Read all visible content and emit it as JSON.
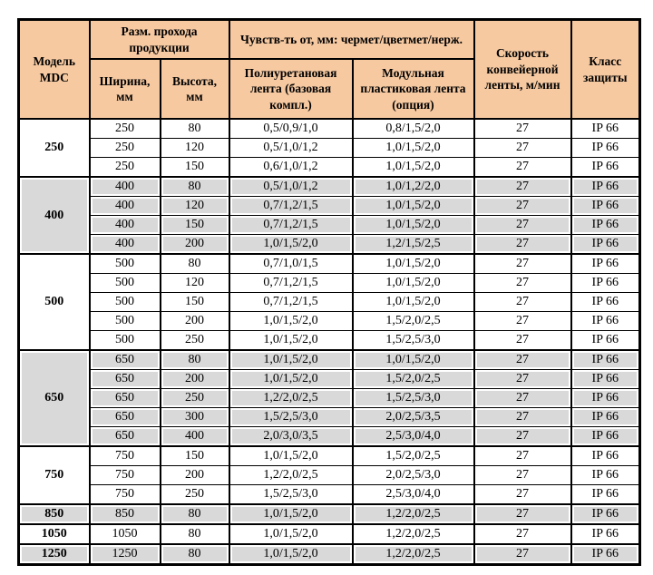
{
  "colors": {
    "header_bg": "#f6c9a1",
    "shaded_row_bg": "#d9d9d9",
    "border": "#000000",
    "text": "#000000",
    "page_bg": "#ffffff"
  },
  "table": {
    "header": {
      "model": "Модель MDC",
      "passage_dims": "Разм. прохода продукции",
      "sensitivity": "Чувств-ть от, мм: чермет/цветмет/нерж.",
      "width": "Ширина, мм",
      "height": "Высота, мм",
      "poly_belt": "Полиуретановая лента (базовая компл.)",
      "modular_belt": "Модульная пластиковая лента (опция)",
      "speed": "Скорость конвейерной ленты, м/мин",
      "protection": "Класс защиты"
    },
    "groups": [
      {
        "model": "250",
        "shaded": false,
        "rows": [
          {
            "width": "250",
            "height": "80",
            "poly": "0,5/0,9/1,0",
            "modular": "0,8/1,5/2,0",
            "speed": "27",
            "protection": "IP 66"
          },
          {
            "width": "250",
            "height": "120",
            "poly": "0,5/1,0/1,2",
            "modular": "1,0/1,5/2,0",
            "speed": "27",
            "protection": "IP 66"
          },
          {
            "width": "250",
            "height": "150",
            "poly": "0,6/1,0/1,2",
            "modular": "1,0/1,5/2,0",
            "speed": "27",
            "protection": "IP 66"
          }
        ]
      },
      {
        "model": "400",
        "shaded": true,
        "rows": [
          {
            "width": "400",
            "height": "80",
            "poly": "0,5/1,0/1,2",
            "modular": "1,0/1,2/2,0",
            "speed": "27",
            "protection": "IP 66"
          },
          {
            "width": "400",
            "height": "120",
            "poly": "0,7/1,2/1,5",
            "modular": "1,0/1,5/2,0",
            "speed": "27",
            "protection": "IP 66"
          },
          {
            "width": "400",
            "height": "150",
            "poly": "0,7/1,2/1,5",
            "modular": "1,0/1,5/2,0",
            "speed": "27",
            "protection": "IP 66"
          },
          {
            "width": "400",
            "height": "200",
            "poly": "1,0/1,5/2,0",
            "modular": "1,2/1,5/2,5",
            "speed": "27",
            "protection": "IP 66"
          }
        ]
      },
      {
        "model": "500",
        "shaded": false,
        "rows": [
          {
            "width": "500",
            "height": "80",
            "poly": "0,7/1,0/1,5",
            "modular": "1,0/1,5/2,0",
            "speed": "27",
            "protection": "IP 66"
          },
          {
            "width": "500",
            "height": "120",
            "poly": "0,7/1,2/1,5",
            "modular": "1,0/1,5/2,0",
            "speed": "27",
            "protection": "IP 66"
          },
          {
            "width": "500",
            "height": "150",
            "poly": "0,7/1,2/1,5",
            "modular": "1,0/1,5/2,0",
            "speed": "27",
            "protection": "IP 66"
          },
          {
            "width": "500",
            "height": "200",
            "poly": "1,0/1,5/2,0",
            "modular": "1,5/2,0/2,5",
            "speed": "27",
            "protection": "IP 66"
          },
          {
            "width": "500",
            "height": "250",
            "poly": "1,0/1,5/2,0",
            "modular": "1,5/2,5/3,0",
            "speed": "27",
            "protection": "IP 66"
          }
        ]
      },
      {
        "model": "650",
        "shaded": true,
        "rows": [
          {
            "width": "650",
            "height": "80",
            "poly": "1,0/1,5/2,0",
            "modular": "1,0/1,5/2,0",
            "speed": "27",
            "protection": "IP 66"
          },
          {
            "width": "650",
            "height": "200",
            "poly": "1,0/1,5/2,0",
            "modular": "1,5/2,0/2,5",
            "speed": "27",
            "protection": "IP 66"
          },
          {
            "width": "650",
            "height": "250",
            "poly": "1,2/2,0/2,5",
            "modular": "1,5/2,5/3,0",
            "speed": "27",
            "protection": "IP 66"
          },
          {
            "width": "650",
            "height": "300",
            "poly": "1,5/2,5/3,0",
            "modular": "2,0/2,5/3,5",
            "speed": "27",
            "protection": "IP 66"
          },
          {
            "width": "650",
            "height": "400",
            "poly": "2,0/3,0/3,5",
            "modular": "2,5/3,0/4,0",
            "speed": "27",
            "protection": "IP 66"
          }
        ]
      },
      {
        "model": "750",
        "shaded": false,
        "rows": [
          {
            "width": "750",
            "height": "150",
            "poly": "1,0/1,5/2,0",
            "modular": "1,5/2,0/2,5",
            "speed": "27",
            "protection": "IP 66"
          },
          {
            "width": "750",
            "height": "200",
            "poly": "1,2/2,0/2,5",
            "modular": "2,0/2,5/3,0",
            "speed": "27",
            "protection": "IP 66"
          },
          {
            "width": "750",
            "height": "250",
            "poly": "1,5/2,5/3,0",
            "modular": "2,5/3,0/4,0",
            "speed": "27",
            "protection": "IP 66"
          }
        ]
      },
      {
        "model": "850",
        "shaded": true,
        "rows": [
          {
            "width": "850",
            "height": "80",
            "poly": "1,0/1,5/2,0",
            "modular": "1,2/2,0/2,5",
            "speed": "27",
            "protection": "IP 66"
          }
        ]
      },
      {
        "model": "1050",
        "shaded": false,
        "rows": [
          {
            "width": "1050",
            "height": "80",
            "poly": "1,0/1,5/2,0",
            "modular": "1,2/2,0/2,5",
            "speed": "27",
            "protection": "IP 66"
          }
        ]
      },
      {
        "model": "1250",
        "shaded": true,
        "rows": [
          {
            "width": "1250",
            "height": "80",
            "poly": "1,0/1,5/2,0",
            "modular": "1,2/2,0/2,5",
            "speed": "27",
            "protection": "IP 66"
          }
        ]
      }
    ]
  }
}
